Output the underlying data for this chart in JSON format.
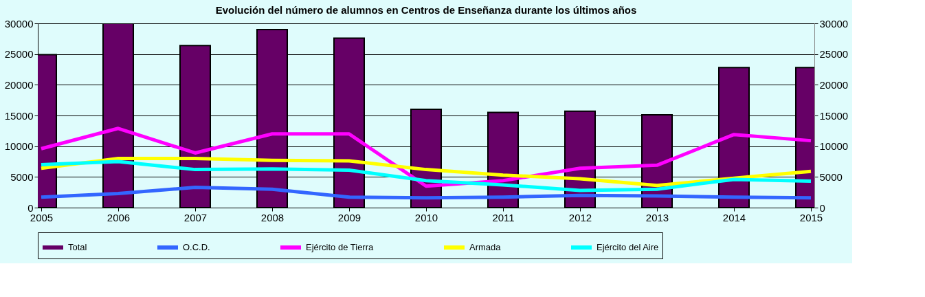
{
  "chart_data": {
    "type": "bar",
    "title": "Evolución del número de alumnos en Centros de Enseñanza durante los últimos años",
    "x": [
      2005,
      2006,
      2007,
      2008,
      2009,
      2010,
      2011,
      2012,
      2013,
      2014,
      2015
    ],
    "series": [
      {
        "name": "Total",
        "color": "#660066",
        "values": [
          24900,
          30000,
          26400,
          29000,
          27600,
          16000,
          15500,
          15700,
          15100,
          22800,
          22800
        ]
      },
      {
        "name": "O.C.D.",
        "type": "line",
        "color": "#3366ff",
        "values": [
          1700,
          2300,
          3300,
          3000,
          1700,
          1600,
          1700,
          2000,
          1900,
          1700,
          1600
        ]
      },
      {
        "name": "Ejército de Tierra",
        "type": "line",
        "color": "#ff00ff",
        "values": [
          9600,
          12900,
          8900,
          12000,
          12000,
          3500,
          4400,
          6400,
          6900,
          11900,
          10900
        ]
      },
      {
        "name": "Armada",
        "type": "line",
        "color": "#ffff00",
        "values": [
          6400,
          8000,
          8000,
          7700,
          7600,
          6200,
          5300,
          4700,
          3600,
          4800,
          5900
        ]
      },
      {
        "name": "Ejército del Aire",
        "type": "line",
        "color": "#00ffff",
        "values": [
          7000,
          7500,
          6200,
          6300,
          6100,
          4400,
          3700,
          2800,
          3000,
          4600,
          4300
        ]
      }
    ],
    "xlim": [
      2005,
      2015
    ],
    "xticks": [
      2005,
      2006,
      2007,
      2008,
      2009,
      2010,
      2011,
      2012,
      2013,
      2014,
      2015
    ],
    "ylim": [
      0,
      30000
    ],
    "yticks": [
      0,
      5000,
      10000,
      15000,
      20000,
      25000,
      30000
    ],
    "y2lim": [
      0,
      30000
    ],
    "y2ticks": [
      0,
      5000,
      10000,
      15000,
      20000,
      25000,
      30000
    ],
    "grid": "y",
    "legend": "bottom"
  }
}
